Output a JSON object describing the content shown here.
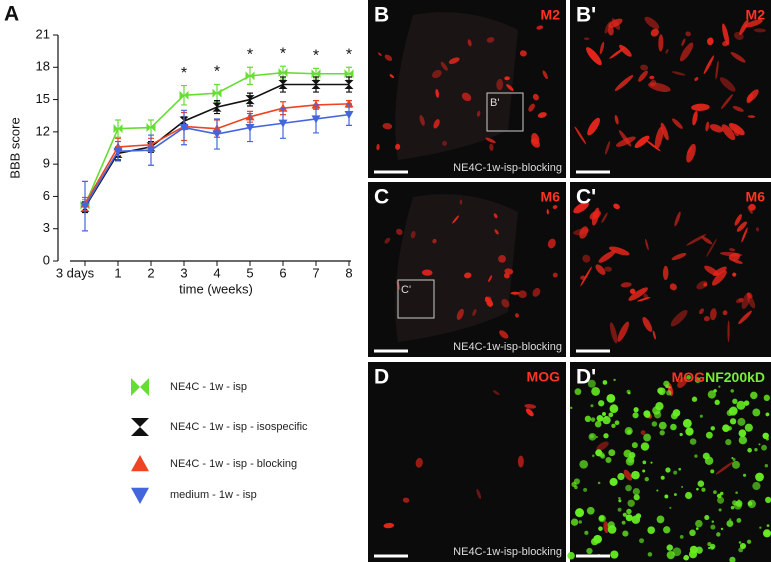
{
  "chart_data": {
    "type": "line",
    "panel_label": "A",
    "xlabel": "time (weeks)",
    "ylabel": "BBB score",
    "categories": [
      "3 days",
      "1",
      "2",
      "3",
      "4",
      "5",
      "6",
      "7",
      "8"
    ],
    "ylim": [
      0,
      21
    ],
    "yticks": [
      0,
      3,
      6,
      9,
      12,
      15,
      18,
      21
    ],
    "series": [
      {
        "name": "NE4C - 1w - isp",
        "color": "#66dd33",
        "marker": "bowtie",
        "values": [
          5.2,
          12.3,
          12.4,
          15.4,
          15.6,
          17.2,
          17.5,
          17.4,
          17.4
        ],
        "errors": [
          0.5,
          0.8,
          0.7,
          0.9,
          0.8,
          0.8,
          0.6,
          0.5,
          0.6
        ]
      },
      {
        "name": "NE4C - 1w - isp - isospecific",
        "color": "#111111",
        "marker": "hourglass",
        "values": [
          5.0,
          10.0,
          10.6,
          13.0,
          14.3,
          15.0,
          16.4,
          16.4,
          16.4
        ],
        "errors": [
          0.5,
          0.6,
          0.5,
          0.4,
          0.6,
          0.6,
          0.7,
          0.7,
          0.7
        ]
      },
      {
        "name": "NE4C - 1w - isp - blocking",
        "color": "#ee4422",
        "marker": "up",
        "values": [
          5.3,
          10.6,
          10.8,
          12.5,
          12.3,
          13.4,
          14.2,
          14.5,
          14.6
        ],
        "errors": [
          0.6,
          0.8,
          0.6,
          1.3,
          0.8,
          0.5,
          0.6,
          0.4,
          0.3
        ]
      },
      {
        "name": "medium - 1w - isp",
        "color": "#4466dd",
        "marker": "down",
        "values": [
          5.1,
          10.2,
          10.3,
          12.4,
          11.8,
          12.4,
          12.8,
          13.2,
          13.6
        ],
        "errors": [
          2.3,
          0.9,
          1.4,
          1.6,
          1.4,
          1.3,
          1.4,
          1.3,
          1.0
        ]
      }
    ],
    "significance": [
      null,
      null,
      null,
      "*",
      "*",
      "*",
      "*",
      "*",
      "*"
    ]
  },
  "panels": [
    {
      "letter": "B",
      "stain": "M2",
      "inset": "B'",
      "caption": "NE4C-1w-isp-blocking"
    },
    {
      "letter": "B'",
      "stain": "M2"
    },
    {
      "letter": "C",
      "stain": "M6",
      "inset": "C'",
      "caption": "NE4C-1w-isp-blocking"
    },
    {
      "letter": "C'",
      "stain": "M6"
    },
    {
      "letter": "D",
      "stain": "MOG",
      "caption": "NE4C-1w-isp-blocking"
    },
    {
      "letter": "D'",
      "stain": "MOG",
      "stain2": "NF200kD"
    }
  ]
}
